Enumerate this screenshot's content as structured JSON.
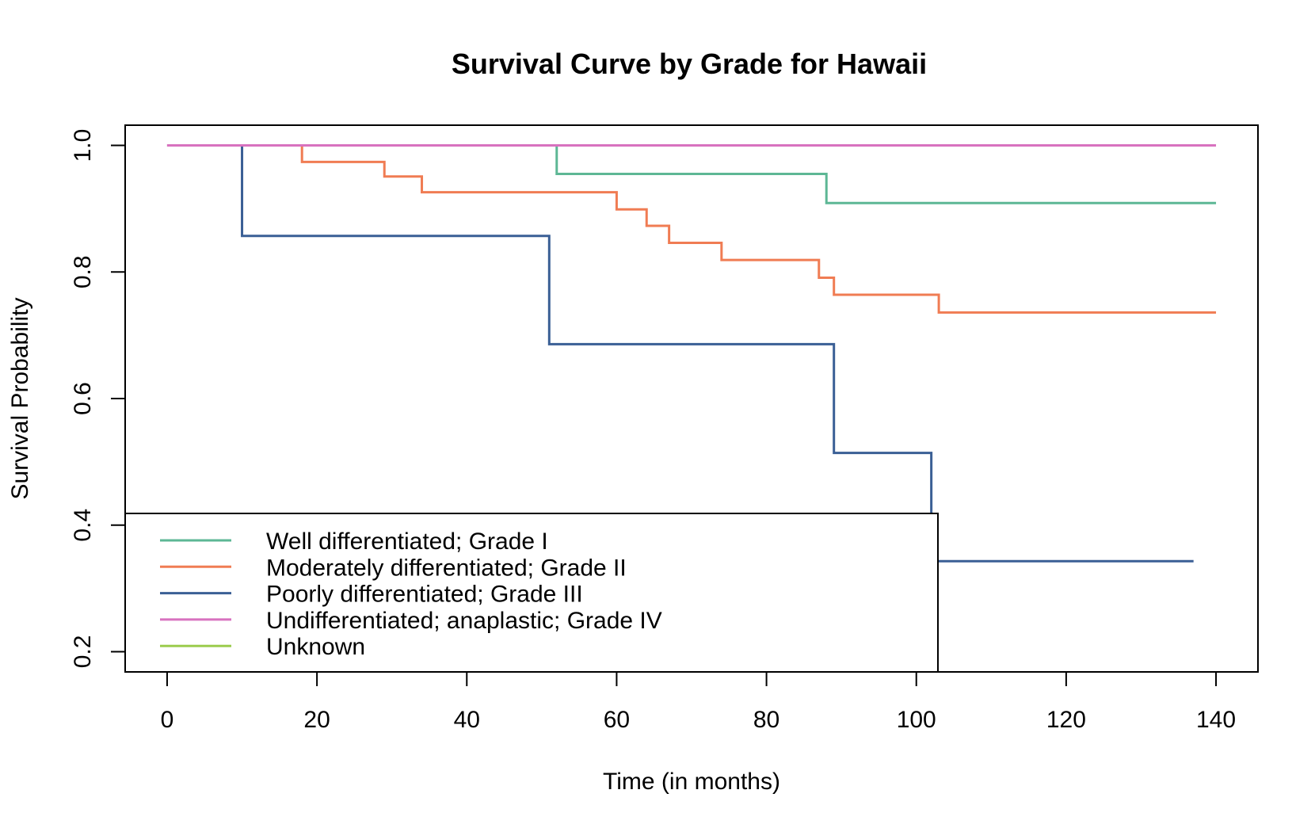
{
  "chart_data": {
    "type": "line",
    "step": true,
    "title": "Survival Curve by Grade for Hawaii",
    "xlabel": "Time (in months)",
    "ylabel": "Survival Probability",
    "xlim": [
      -5.6,
      145.6
    ],
    "ylim": [
      0.168,
      1.032
    ],
    "xticks": [
      0,
      20,
      40,
      60,
      80,
      100,
      120,
      140
    ],
    "yticks": [
      0.2,
      0.4,
      0.6,
      0.8,
      1.0
    ],
    "xtick_labels": [
      "0",
      "20",
      "40",
      "60",
      "80",
      "100",
      "120",
      "140"
    ],
    "ytick_labels": [
      "0.2",
      "0.4",
      "0.6",
      "0.8",
      "1.0"
    ],
    "grid": false,
    "legend_position": "bottom-left",
    "series": [
      {
        "name": "Well differentiated; Grade I",
        "color": "#5db795",
        "x": [
          0,
          52,
          88,
          140
        ],
        "y": [
          1.0,
          0.955,
          0.909,
          0.909
        ]
      },
      {
        "name": "Moderately differentiated; Grade II",
        "color": "#f07c53",
        "x": [
          0,
          18,
          29,
          34,
          60,
          64,
          67,
          74,
          87,
          89,
          103,
          140
        ],
        "y": [
          1.0,
          0.974,
          0.951,
          0.926,
          0.899,
          0.873,
          0.846,
          0.819,
          0.791,
          0.764,
          0.736,
          0.736
        ]
      },
      {
        "name": "Poorly differentiated; Grade III",
        "color": "#3a5f95",
        "x": [
          0,
          10,
          51,
          89,
          102,
          137
        ],
        "y": [
          1.0,
          0.857,
          0.686,
          0.514,
          0.343,
          0.343
        ]
      },
      {
        "name": "Undifferentiated; anaplastic; Grade IV",
        "color": "#d872bf",
        "x": [
          0,
          140
        ],
        "y": [
          1.0,
          1.0
        ]
      },
      {
        "name": "Unknown",
        "color": "#9ccc4e",
        "x": [],
        "y": []
      }
    ]
  }
}
